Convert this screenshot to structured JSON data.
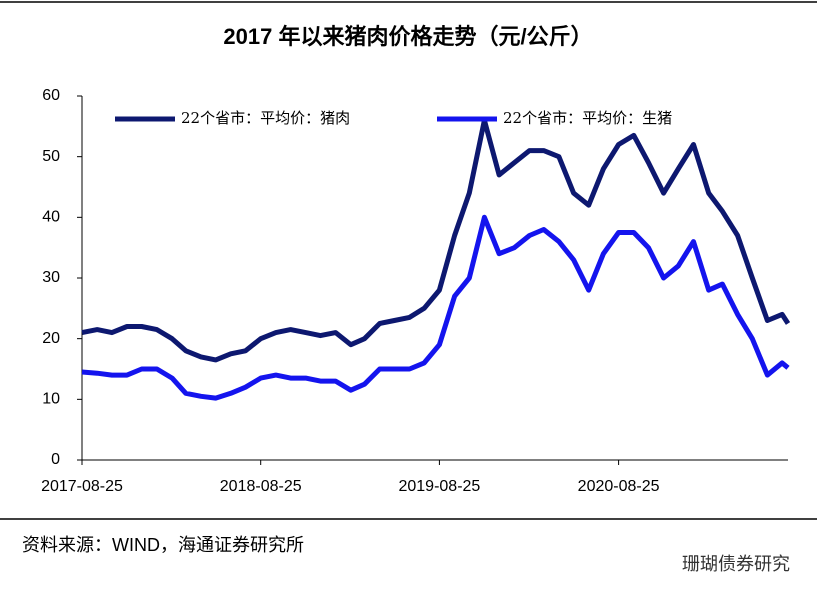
{
  "chart_data": {
    "type": "line",
    "title": "2017 年以来猪肉价格走势（元/公斤）",
    "source": "资料来源：WIND，海通证券研究所",
    "watermark": "珊瑚债券研究",
    "x": [
      "2017-08-25",
      "2017-09-25",
      "2017-10-25",
      "2017-11-25",
      "2017-12-25",
      "2018-01-25",
      "2018-02-25",
      "2018-03-25",
      "2018-04-25",
      "2018-05-25",
      "2018-06-25",
      "2018-07-25",
      "2018-08-25",
      "2018-09-25",
      "2018-10-25",
      "2018-11-25",
      "2018-12-25",
      "2019-01-25",
      "2019-02-25",
      "2019-03-25",
      "2019-04-25",
      "2019-05-25",
      "2019-06-25",
      "2019-07-25",
      "2019-08-25",
      "2019-09-25",
      "2019-10-25",
      "2019-11-25",
      "2019-12-25",
      "2020-01-25",
      "2020-02-25",
      "2020-03-25",
      "2020-04-25",
      "2020-05-25",
      "2020-06-25",
      "2020-07-25",
      "2020-08-25",
      "2020-09-25",
      "2020-10-25",
      "2020-11-25",
      "2020-12-25",
      "2021-01-25",
      "2021-02-25",
      "2021-03-25",
      "2021-04-25",
      "2021-05-25",
      "2021-06-25",
      "2021-07-25",
      "2021-08-06"
    ],
    "series": [
      {
        "name": "22个省市：平均价：猪肉",
        "color": "#0d1870",
        "values": [
          21,
          21.5,
          21,
          22,
          22,
          21.5,
          20,
          18,
          17,
          16.5,
          17.5,
          18,
          20,
          21,
          21.5,
          21,
          20.5,
          21,
          19,
          20,
          22.5,
          23,
          23.5,
          25,
          28,
          37,
          44,
          56,
          47,
          49,
          51,
          51,
          50,
          44,
          42,
          48,
          52,
          53.5,
          49,
          44,
          48,
          52,
          44,
          41,
          37,
          30,
          23,
          24,
          22.5
        ]
      },
      {
        "name": "22个省市：平均价：生猪",
        "color": "#1414ee",
        "values": [
          14.5,
          14.3,
          14,
          14,
          15,
          15,
          13.5,
          11,
          10.5,
          10.2,
          11,
          12,
          13.5,
          14,
          13.5,
          13.5,
          13,
          13,
          11.5,
          12.5,
          15,
          15,
          15,
          16,
          19,
          27,
          30,
          40,
          34,
          35,
          37,
          38,
          36,
          33,
          28,
          34,
          37.5,
          37.5,
          35,
          30,
          32,
          36,
          28,
          29,
          24,
          20,
          14,
          16,
          15.2
        ]
      }
    ],
    "xlim": [
      "2017-08-25",
      "2021-08-06"
    ],
    "xticks": [
      "2017-08-25",
      "2018-08-25",
      "2019-08-25",
      "2020-08-25"
    ],
    "ylim": [
      0,
      60
    ],
    "yticks": [
      0,
      10,
      20,
      30,
      40,
      50,
      60
    ]
  }
}
